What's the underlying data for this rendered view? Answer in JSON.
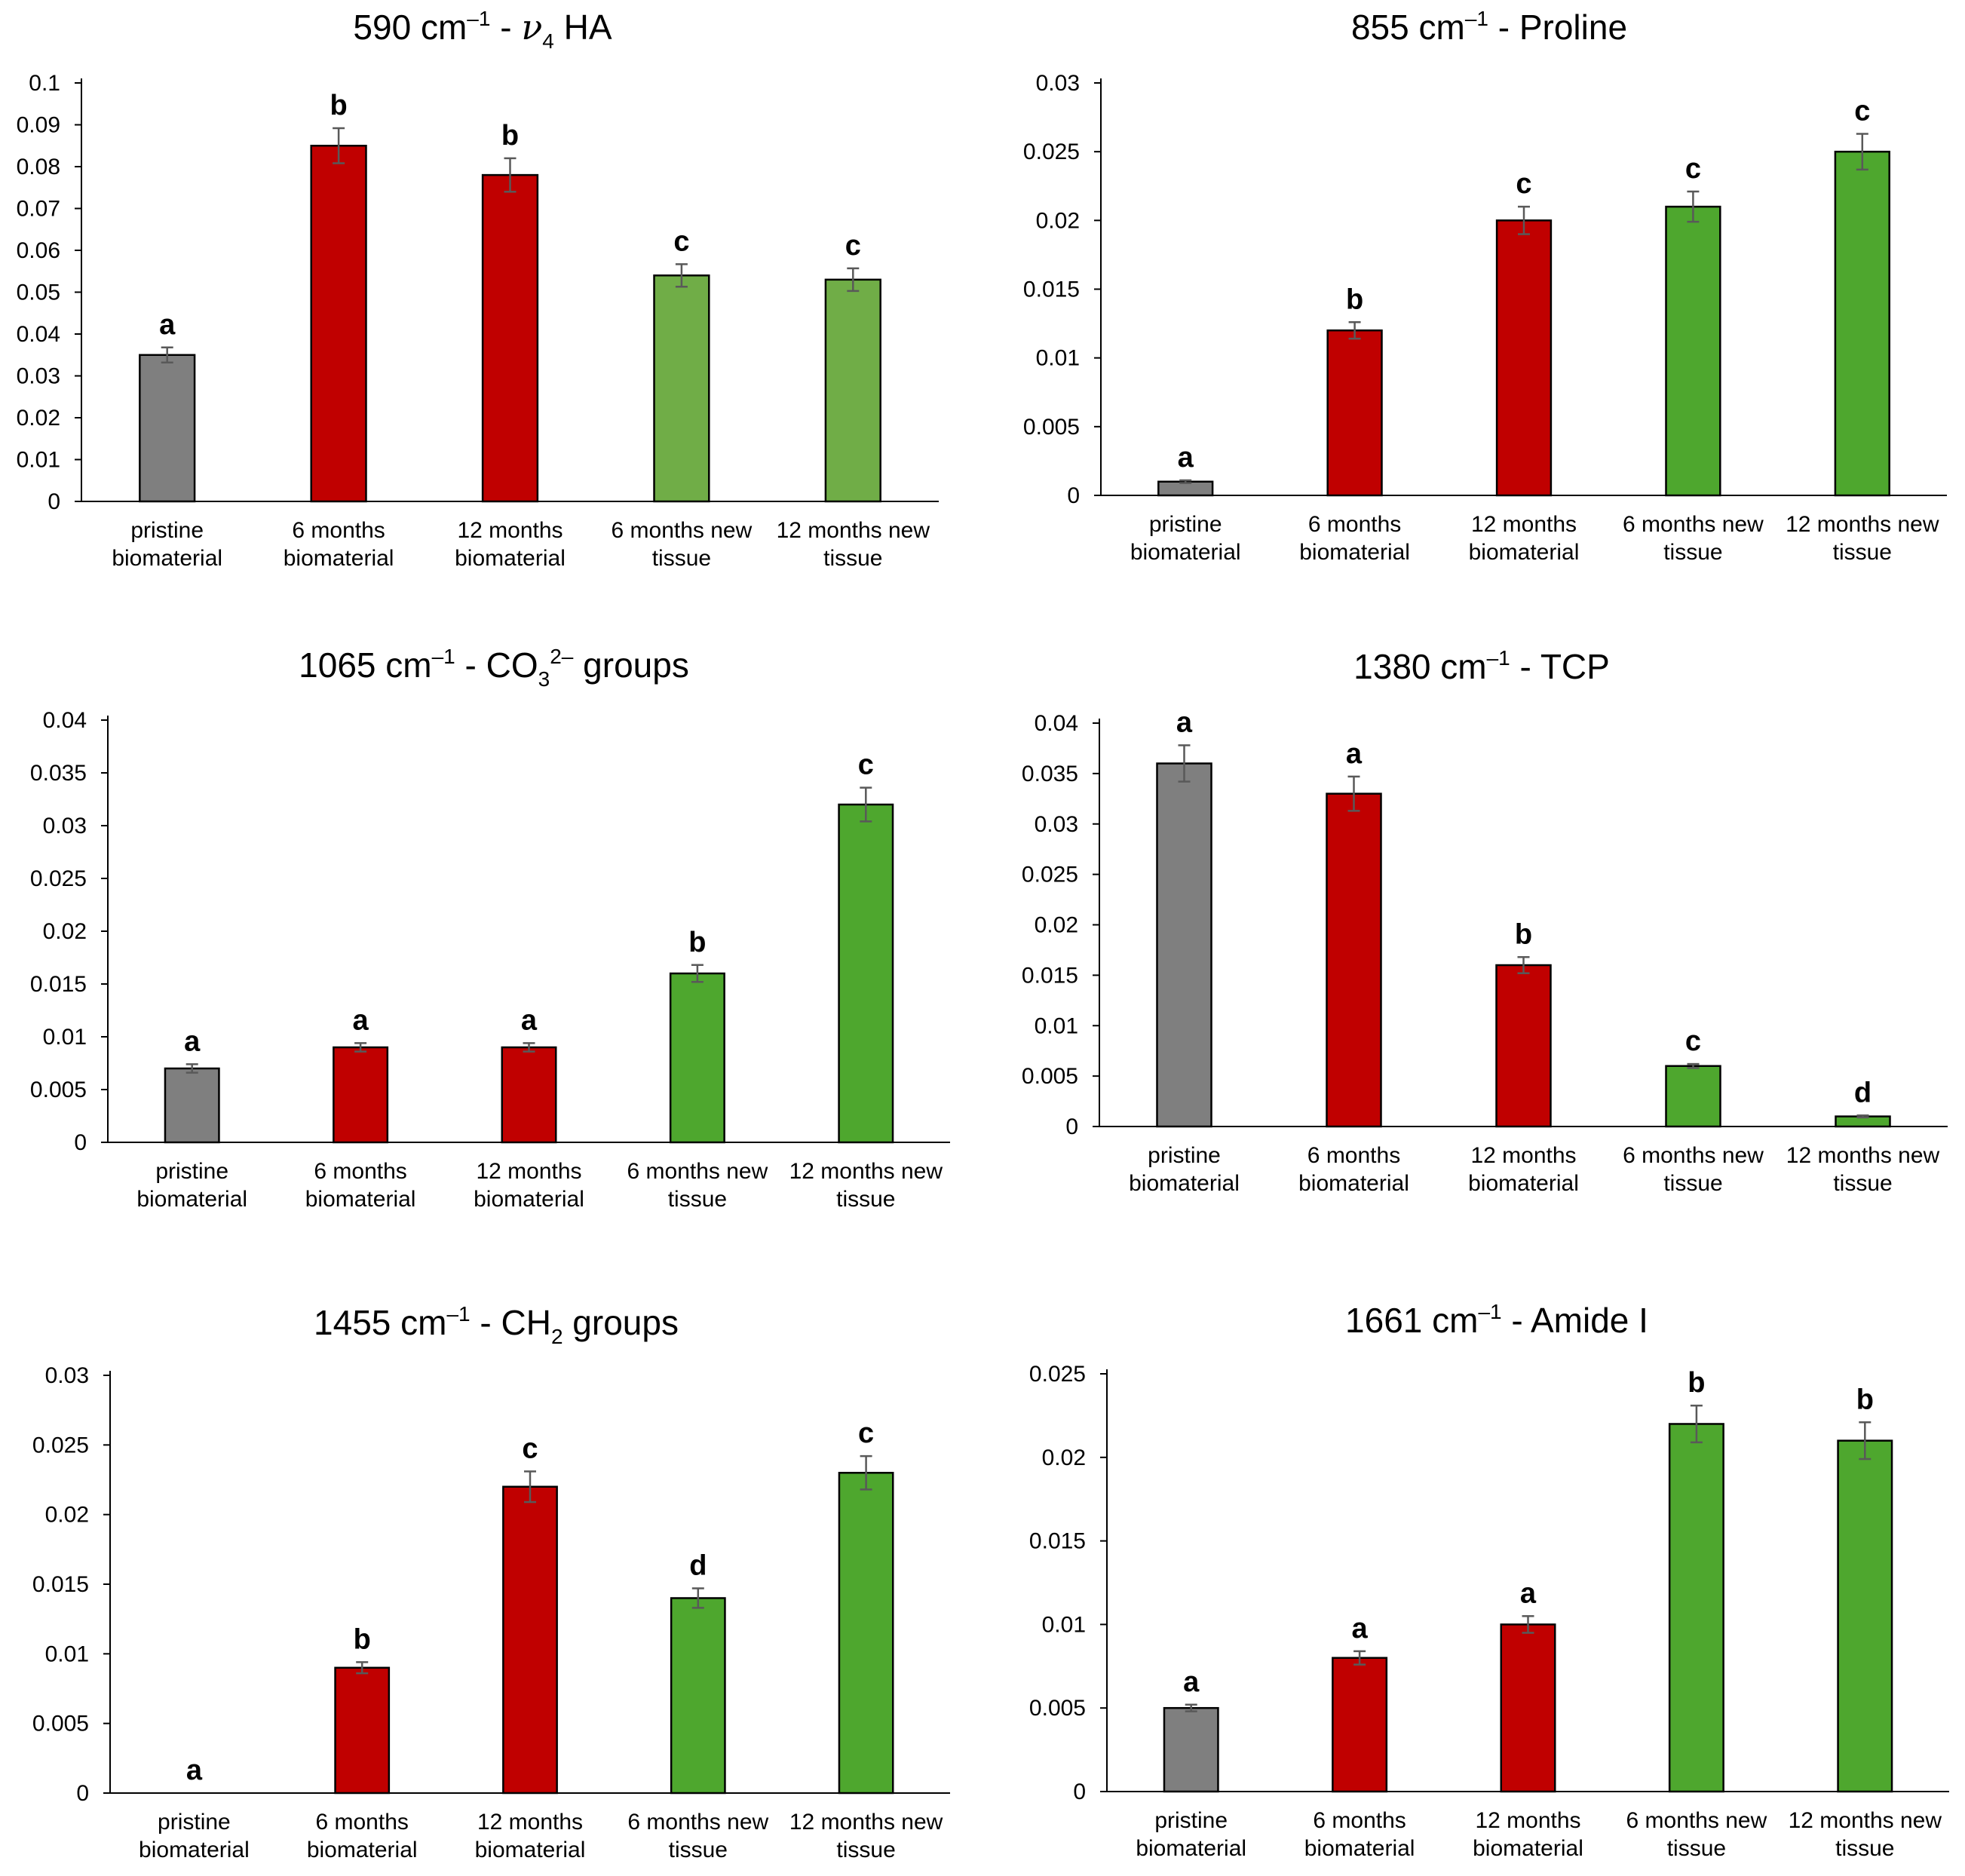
{
  "chart_data": [
    {
      "type": "bar",
      "title_main": "590 cm",
      "title_sup": "–1",
      "title_rest": " - ",
      "title_greek": "ν",
      "title_greek_sub": "4",
      "title_tail": " HA",
      "categories": [
        [
          "pristine",
          "biomaterial"
        ],
        [
          "6 months",
          "biomaterial"
        ],
        [
          "12 months",
          "biomaterial"
        ],
        [
          "6 months new",
          "tissue"
        ],
        [
          "12 months new",
          "tissue"
        ]
      ],
      "values": [
        0.035,
        0.085,
        0.078,
        0.054,
        0.053
      ],
      "errors": [
        0.0018,
        0.0042,
        0.004,
        0.0027,
        0.0027
      ],
      "letters": [
        "a",
        "b",
        "b",
        "c",
        "c"
      ],
      "colors": [
        "#7f7f7f",
        "#c00000",
        "#c00000",
        "#70ad47",
        "#70ad47"
      ],
      "ylim": [
        0,
        0.1
      ],
      "yticks": [
        "0",
        "0.01",
        "0.02",
        "0.03",
        "0.04",
        "0.05",
        "0.06",
        "0.07",
        "0.08",
        "0.09",
        "0.1"
      ],
      "xlabel": "",
      "ylabel": "",
      "grid": false
    },
    {
      "type": "bar",
      "title_main": "855 cm",
      "title_sup": "–1",
      "title_rest": " - Proline",
      "categories": [
        [
          "pristine",
          "biomaterial"
        ],
        [
          "6 months",
          "biomaterial"
        ],
        [
          "12 months",
          "biomaterial"
        ],
        [
          "6 months new",
          "tissue"
        ],
        [
          "12 months new",
          "tissue"
        ]
      ],
      "values": [
        0.001,
        0.012,
        0.02,
        0.021,
        0.025
      ],
      "errors": [
        0.0001,
        0.0006,
        0.001,
        0.0011,
        0.0013
      ],
      "letters": [
        "a",
        "b",
        "c",
        "c",
        "c"
      ],
      "colors": [
        "#7f7f7f",
        "#c00000",
        "#c00000",
        "#4ea72e",
        "#4ea72e"
      ],
      "ylim": [
        0,
        0.03
      ],
      "yticks": [
        "0",
        "0.005",
        "0.01",
        "0.015",
        "0.02",
        "0.025",
        "0.03"
      ],
      "xlabel": "",
      "ylabel": "",
      "grid": false
    },
    {
      "type": "bar",
      "title_main": "1065 cm",
      "title_sup": "–1",
      "title_rest": " - CO",
      "title_sub2": "3",
      "title_sup2": "2–",
      "title_tail": " groups",
      "categories": [
        [
          "pristine",
          "biomaterial"
        ],
        [
          "6 months",
          "biomaterial"
        ],
        [
          "12 months",
          "biomaterial"
        ],
        [
          "6 months new",
          "tissue"
        ],
        [
          "12 months new",
          "tissue"
        ]
      ],
      "values": [
        0.007,
        0.009,
        0.009,
        0.016,
        0.032
      ],
      "errors": [
        0.0004,
        0.0004,
        0.0004,
        0.0008,
        0.0016
      ],
      "letters": [
        "a",
        "a",
        "a",
        "b",
        "c"
      ],
      "colors": [
        "#7f7f7f",
        "#c00000",
        "#c00000",
        "#4ea72e",
        "#4ea72e"
      ],
      "ylim": [
        0,
        0.04
      ],
      "yticks": [
        "0",
        "0.005",
        "0.01",
        "0.015",
        "0.02",
        "0.025",
        "0.03",
        "0.035",
        "0.04"
      ],
      "xlabel": "",
      "ylabel": "",
      "grid": false
    },
    {
      "type": "bar",
      "title_main": "1380 cm",
      "title_sup": "–1",
      "title_rest": " - TCP",
      "categories": [
        [
          "pristine",
          "biomaterial"
        ],
        [
          "6 months",
          "biomaterial"
        ],
        [
          "12 months",
          "biomaterial"
        ],
        [
          "6 months new",
          "tissue"
        ],
        [
          "12 months new",
          "tissue"
        ]
      ],
      "values": [
        0.036,
        0.033,
        0.016,
        0.006,
        0.001
      ],
      "errors": [
        0.0018,
        0.0017,
        0.0008,
        0.0002,
        0.0001
      ],
      "letters": [
        "a",
        "a",
        "b",
        "c",
        "d"
      ],
      "colors": [
        "#7f7f7f",
        "#c00000",
        "#c00000",
        "#4ea72e",
        "#4ea72e"
      ],
      "ylim": [
        0,
        0.04
      ],
      "yticks": [
        "0",
        "0.005",
        "0.01",
        "0.015",
        "0.02",
        "0.025",
        "0.03",
        "0.035",
        "0.04"
      ],
      "xlabel": "",
      "ylabel": "",
      "grid": false
    },
    {
      "type": "bar",
      "title_main": "1455 cm",
      "title_sup": "–1",
      "title_rest": " - CH",
      "title_sub2": "2",
      "title_tail": " groups",
      "categories": [
        [
          "pristine",
          "biomaterial"
        ],
        [
          "6 months",
          "biomaterial"
        ],
        [
          "12 months",
          "biomaterial"
        ],
        [
          "6 months new",
          "tissue"
        ],
        [
          "12 months new",
          "tissue"
        ]
      ],
      "values": [
        0,
        0.009,
        0.022,
        0.014,
        0.023
      ],
      "errors": [
        0,
        0.0004,
        0.0011,
        0.0007,
        0.0012
      ],
      "letters": [
        "a",
        "b",
        "c",
        "d",
        "c"
      ],
      "colors": [
        "#7f7f7f",
        "#c00000",
        "#c00000",
        "#4ea72e",
        "#4ea72e"
      ],
      "ylim": [
        0,
        0.03
      ],
      "yticks": [
        "0",
        "0.005",
        "0.01",
        "0.015",
        "0.02",
        "0.025",
        "0.03"
      ],
      "xlabel": "",
      "ylabel": "",
      "grid": false
    },
    {
      "type": "bar",
      "title_main": "1661 cm",
      "title_sup": "–1",
      "title_rest": " - Amide I",
      "categories": [
        [
          "pristine",
          "biomaterial"
        ],
        [
          "6 months",
          "biomaterial"
        ],
        [
          "12 months",
          "biomaterial"
        ],
        [
          "6 months new",
          "tissue"
        ],
        [
          "12 months new",
          "tissue"
        ]
      ],
      "values": [
        0.005,
        0.008,
        0.01,
        0.022,
        0.021
      ],
      "errors": [
        0.0002,
        0.0004,
        0.0005,
        0.0011,
        0.0011
      ],
      "letters": [
        "a",
        "a",
        "a",
        "b",
        "b"
      ],
      "colors": [
        "#7f7f7f",
        "#c00000",
        "#c00000",
        "#4ea72e",
        "#4ea72e"
      ],
      "ylim": [
        0,
        0.025
      ],
      "yticks": [
        "0",
        "0.005",
        "0.01",
        "0.015",
        "0.02",
        "0.025"
      ],
      "xlabel": "",
      "ylabel": "",
      "grid": false
    }
  ]
}
